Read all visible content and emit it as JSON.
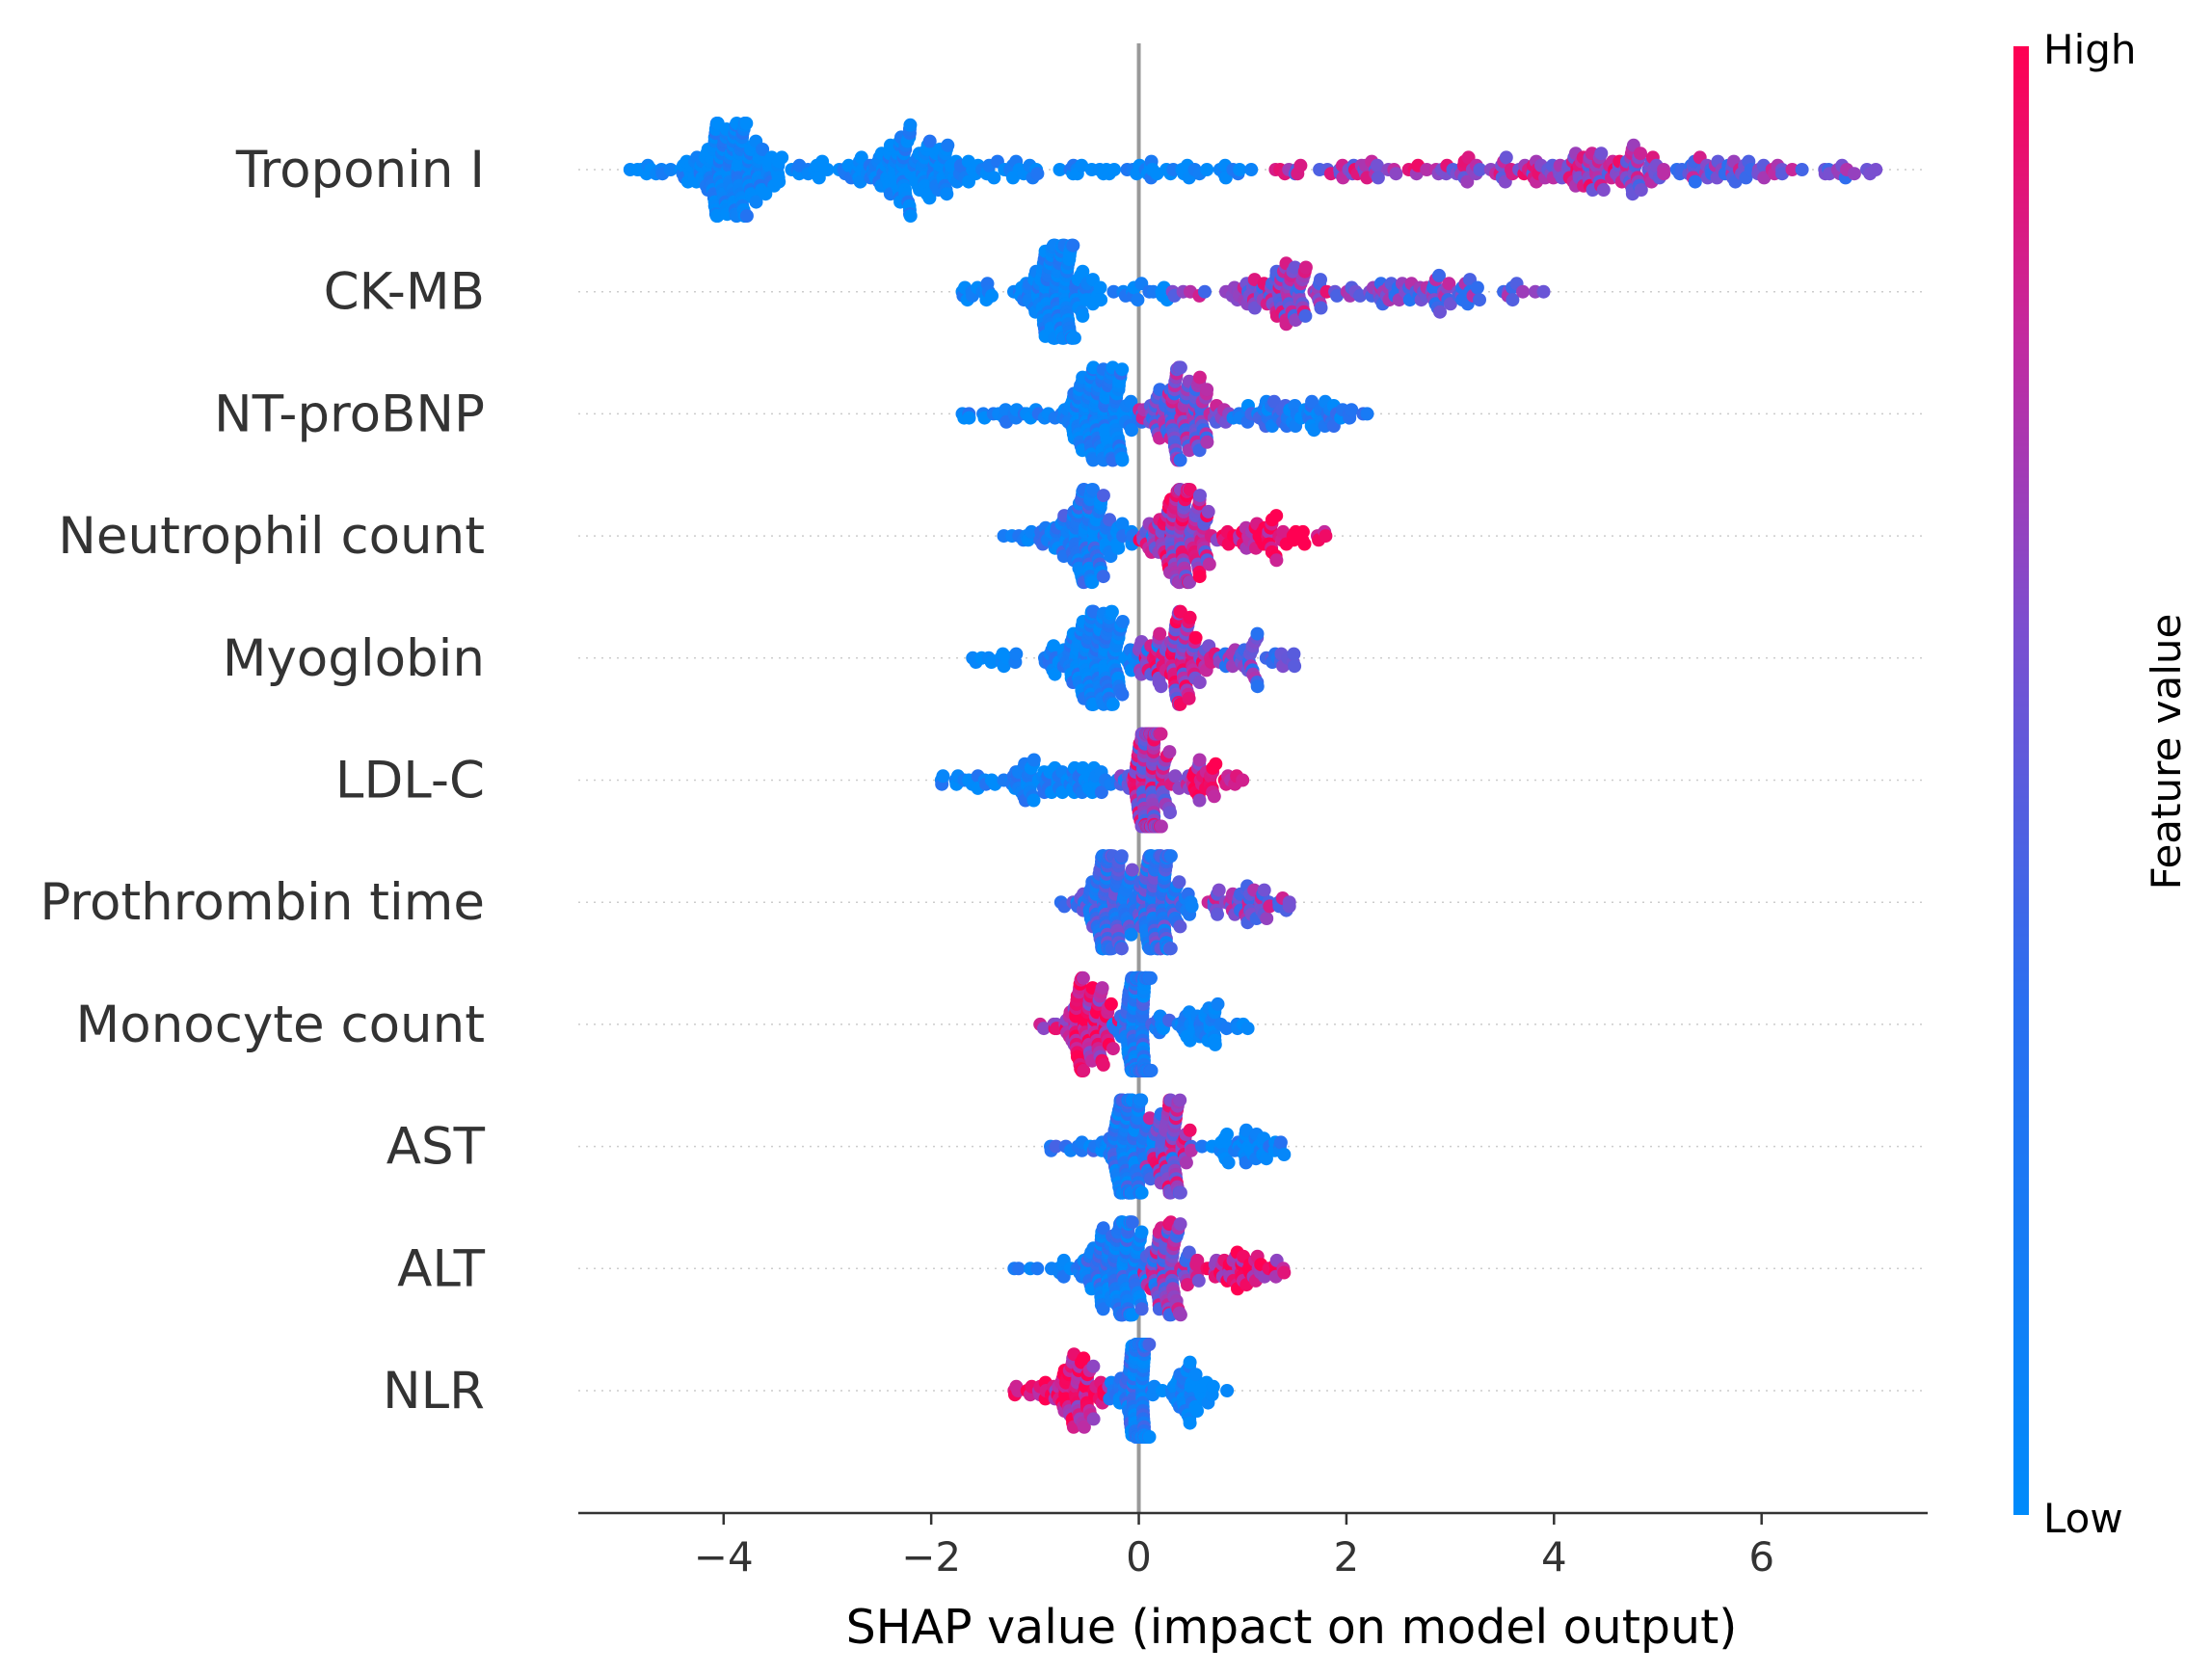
{
  "chart_data": {
    "type": "scatter",
    "subtype": "shap-beeswarm",
    "xlabel": "SHAP value (impact on model output)",
    "xlim": [
      -5.4,
      7.6
    ],
    "xticks": [
      -4,
      -2,
      0,
      2,
      4,
      6
    ],
    "xtick_labels": [
      "−4",
      "−2",
      "0",
      "2",
      "4",
      "6"
    ],
    "zero_line": 0,
    "colorbar": {
      "title": "Feature value",
      "high_label": "High",
      "low_label": "Low",
      "low_color": "#008bfb",
      "high_color": "#ff0052"
    },
    "features": [
      {
        "name": "Troponin I",
        "min": -4.9,
        "max": 7.1,
        "clusters": [
          {
            "center": -3.9,
            "spread": 0.35,
            "density": 0.6,
            "color_mean": 0.03
          },
          {
            "center": -2.2,
            "spread": 0.45,
            "density": 0.45,
            "color_mean": 0.03
          },
          {
            "center": 4.4,
            "spread": 0.6,
            "density": 0.25,
            "color_mean": 0.7
          },
          {
            "center": 5.5,
            "spread": 0.5,
            "density": 0.12,
            "color_mean": 0.6
          }
        ]
      },
      {
        "name": "CK-MB",
        "min": -1.7,
        "max": 3.9,
        "clusters": [
          {
            "center": -0.8,
            "spread": 0.25,
            "density": 0.55,
            "color_mean": 0.05
          },
          {
            "center": 1.4,
            "spread": 0.35,
            "density": 0.25,
            "color_mean": 0.65
          },
          {
            "center": 2.7,
            "spread": 0.6,
            "density": 0.1,
            "color_mean": 0.55
          }
        ]
      },
      {
        "name": "NT-proBNP",
        "min": -1.7,
        "max": 2.2,
        "clusters": [
          {
            "center": -0.4,
            "spread": 0.3,
            "density": 0.5,
            "color_mean": 0.1
          },
          {
            "center": 0.4,
            "spread": 0.3,
            "density": 0.4,
            "color_mean": 0.6
          },
          {
            "center": 1.4,
            "spread": 0.4,
            "density": 0.12,
            "color_mean": 0.2
          }
        ]
      },
      {
        "name": "Neutrophil count",
        "min": -1.3,
        "max": 1.8,
        "clusters": [
          {
            "center": -0.5,
            "spread": 0.3,
            "density": 0.45,
            "color_mean": 0.2
          },
          {
            "center": 0.4,
            "spread": 0.25,
            "density": 0.45,
            "color_mean": 0.75
          },
          {
            "center": 1.2,
            "spread": 0.3,
            "density": 0.1,
            "color_mean": 0.95
          }
        ]
      },
      {
        "name": "Myoglobin",
        "min": -1.6,
        "max": 1.5,
        "clusters": [
          {
            "center": -0.4,
            "spread": 0.3,
            "density": 0.55,
            "color_mean": 0.08
          },
          {
            "center": 0.4,
            "spread": 0.25,
            "density": 0.35,
            "color_mean": 0.75
          },
          {
            "center": 1.1,
            "spread": 0.25,
            "density": 0.08,
            "color_mean": 0.5
          }
        ]
      },
      {
        "name": "LDL-C",
        "min": -1.9,
        "max": 1.0,
        "clusters": [
          {
            "center": -0.8,
            "spread": 0.5,
            "density": 0.2,
            "color_mean": 0.08
          },
          {
            "center": 0.1,
            "spread": 0.12,
            "density": 0.65,
            "color_mean": 0.7
          },
          {
            "center": 0.6,
            "spread": 0.2,
            "density": 0.1,
            "color_mean": 0.85
          }
        ]
      },
      {
        "name": "Prothrombin time",
        "min": -0.75,
        "max": 1.45,
        "clusters": [
          {
            "center": -0.3,
            "spread": 0.2,
            "density": 0.45,
            "color_mean": 0.35
          },
          {
            "center": 0.2,
            "spread": 0.2,
            "density": 0.45,
            "color_mean": 0.35
          },
          {
            "center": 1.0,
            "spread": 0.3,
            "density": 0.12,
            "color_mean": 0.6
          }
        ]
      },
      {
        "name": "Monocyte count",
        "min": -0.95,
        "max": 1.05,
        "clusters": [
          {
            "center": -0.5,
            "spread": 0.2,
            "density": 0.3,
            "color_mean": 0.85
          },
          {
            "center": 0.0,
            "spread": 0.12,
            "density": 0.6,
            "color_mean": 0.2
          },
          {
            "center": 0.6,
            "spread": 0.25,
            "density": 0.12,
            "color_mean": 0.05
          }
        ]
      },
      {
        "name": "AST",
        "min": -0.85,
        "max": 1.4,
        "clusters": [
          {
            "center": -0.1,
            "spread": 0.2,
            "density": 0.55,
            "color_mean": 0.2
          },
          {
            "center": 0.3,
            "spread": 0.15,
            "density": 0.25,
            "color_mean": 0.7
          },
          {
            "center": 1.0,
            "spread": 0.3,
            "density": 0.1,
            "color_mean": 0.05
          }
        ]
      },
      {
        "name": "ALT",
        "min": -1.2,
        "max": 1.4,
        "clusters": [
          {
            "center": -0.2,
            "spread": 0.25,
            "density": 0.5,
            "color_mean": 0.2
          },
          {
            "center": 0.3,
            "spread": 0.2,
            "density": 0.3,
            "color_mean": 0.65
          },
          {
            "center": 0.9,
            "spread": 0.25,
            "density": 0.1,
            "color_mean": 0.9
          }
        ]
      },
      {
        "name": "NLR",
        "min": -1.2,
        "max": 0.85,
        "clusters": [
          {
            "center": -0.6,
            "spread": 0.25,
            "density": 0.25,
            "color_mean": 0.9
          },
          {
            "center": 0.0,
            "spread": 0.1,
            "density": 0.6,
            "color_mean": 0.2
          },
          {
            "center": 0.5,
            "spread": 0.15,
            "density": 0.12,
            "color_mean": 0.05
          }
        ]
      }
    ]
  }
}
